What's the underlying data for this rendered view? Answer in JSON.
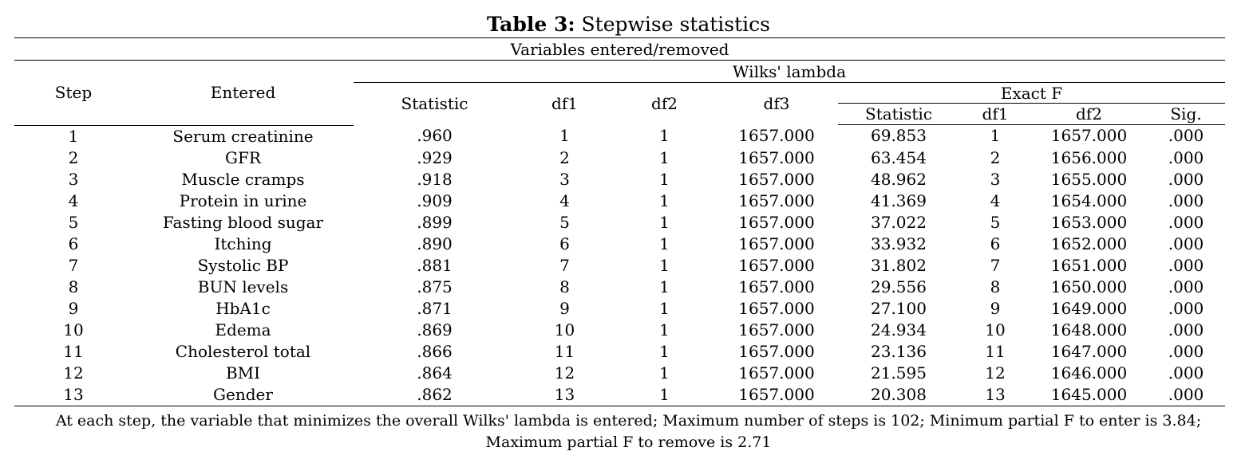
{
  "caption": {
    "label": "Table 3:",
    "title": "Stepwise statistics"
  },
  "table": {
    "group_header": "Variables entered/removed",
    "col_step": "Step",
    "col_entered": "Entered",
    "wilks_header": "Wilks' lambda",
    "exact_f_header": "Exact F",
    "wilks_cols": [
      "Statistic",
      "df1",
      "df2",
      "df3"
    ],
    "exact_f_cols": [
      "Statistic",
      "df1",
      "df2",
      "Sig."
    ],
    "rows": [
      [
        "1",
        "Serum creatinine",
        ".960",
        "1",
        "1",
        "1657.000",
        "69.853",
        "1",
        "1657.000",
        ".000"
      ],
      [
        "2",
        "GFR",
        ".929",
        "2",
        "1",
        "1657.000",
        "63.454",
        "2",
        "1656.000",
        ".000"
      ],
      [
        "3",
        "Muscle cramps",
        ".918",
        "3",
        "1",
        "1657.000",
        "48.962",
        "3",
        "1655.000",
        ".000"
      ],
      [
        "4",
        "Protein in urine",
        ".909",
        "4",
        "1",
        "1657.000",
        "41.369",
        "4",
        "1654.000",
        ".000"
      ],
      [
        "5",
        "Fasting blood sugar",
        ".899",
        "5",
        "1",
        "1657.000",
        "37.022",
        "5",
        "1653.000",
        ".000"
      ],
      [
        "6",
        "Itching",
        ".890",
        "6",
        "1",
        "1657.000",
        "33.932",
        "6",
        "1652.000",
        ".000"
      ],
      [
        "7",
        "Systolic BP",
        ".881",
        "7",
        "1",
        "1657.000",
        "31.802",
        "7",
        "1651.000",
        ".000"
      ],
      [
        "8",
        "BUN levels",
        ".875",
        "8",
        "1",
        "1657.000",
        "29.556",
        "8",
        "1650.000",
        ".000"
      ],
      [
        "9",
        "HbA1c",
        ".871",
        "9",
        "1",
        "1657.000",
        "27.100",
        "9",
        "1649.000",
        ".000"
      ],
      [
        "10",
        "Edema",
        ".869",
        "10",
        "1",
        "1657.000",
        "24.934",
        "10",
        "1648.000",
        ".000"
      ],
      [
        "11",
        "Cholesterol total",
        ".866",
        "11",
        "1",
        "1657.000",
        "23.136",
        "11",
        "1647.000",
        ".000"
      ],
      [
        "12",
        "BMI",
        ".864",
        "12",
        "1",
        "1657.000",
        "21.595",
        "12",
        "1646.000",
        ".000"
      ],
      [
        "13",
        "Gender",
        ".862",
        "13",
        "1",
        "1657.000",
        "20.308",
        "13",
        "1645.000",
        ".000"
      ]
    ]
  },
  "footnote": "At each step, the variable that minimizes the overall Wilks' lambda is entered; Maximum number of steps is 102; Minimum partial F to enter is 3.84; Maximum partial F to remove is 2.71"
}
